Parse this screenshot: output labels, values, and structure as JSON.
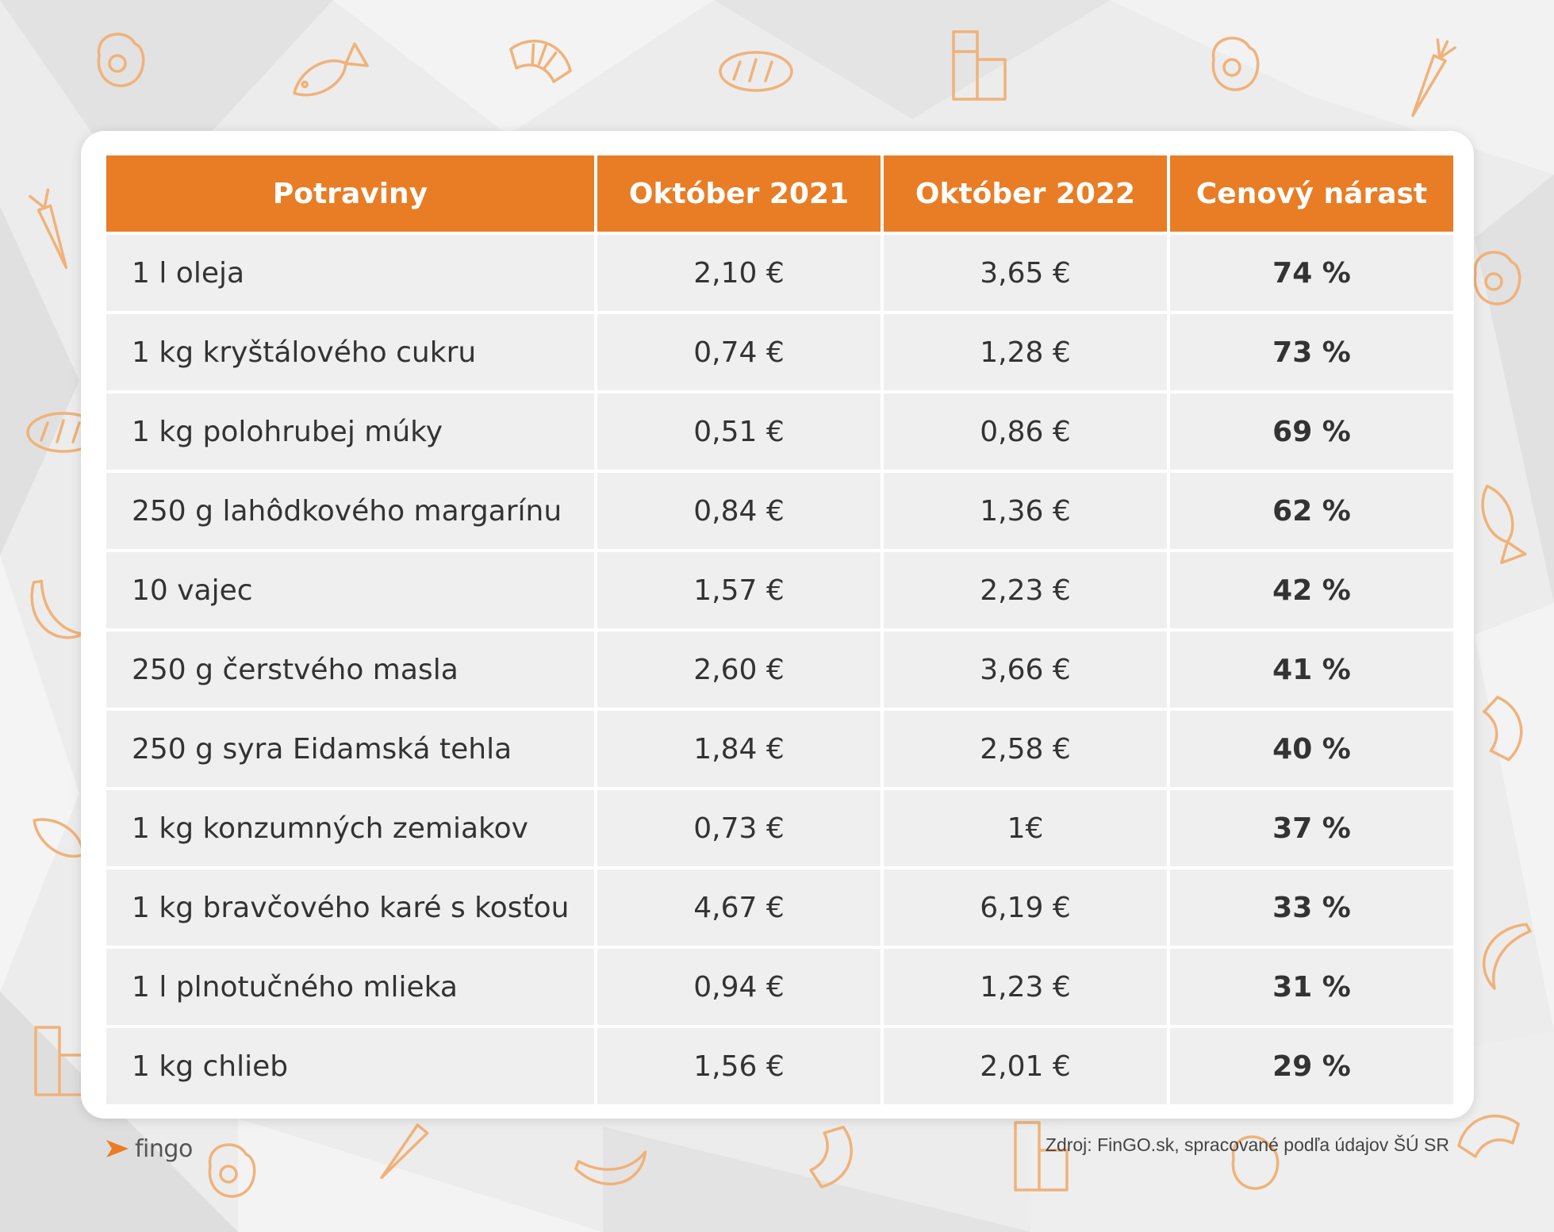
{
  "chart_data": {
    "type": "table",
    "columns": [
      "Potraviny",
      "Október 2021",
      "Október 2022",
      "Cenový nárast"
    ],
    "rows": [
      [
        "1 l oleja",
        "2,10 €",
        "3,65 €",
        "74 %"
      ],
      [
        "1 kg kryštálového cukru",
        "0,74 €",
        "1,28 €",
        "73 %"
      ],
      [
        "1 kg polohrubej múky",
        "0,51 €",
        "0,86 €",
        "69 %"
      ],
      [
        "250 g lahôdkového margarínu",
        "0,84 €",
        "1,36 €",
        "62 %"
      ],
      [
        "10 vajec",
        "1,57 €",
        "2,23 €",
        "42 %"
      ],
      [
        "250 g čerstvého masla",
        "2,60 €",
        "3,66 €",
        "41 %"
      ],
      [
        "250 g syra Eidamská tehla",
        "1,84 €",
        "2,58 €",
        "40 %"
      ],
      [
        "1 kg konzumných zemiakov",
        "0,73 €",
        "1€",
        "37 %"
      ],
      [
        "1 kg bravčového karé s kosťou",
        "4,67 €",
        "6,19 €",
        "33 %"
      ],
      [
        "1 l plnotučného mlieka",
        "0,94 €",
        "1,23 €",
        "31 %"
      ],
      [
        "1 kg chlieb",
        "1,56 €",
        "2,01 €",
        "29 %"
      ]
    ]
  },
  "footer": {
    "logo_text": "fingo",
    "source": "Zdroj: FinGO.sk, spracované podľa údajov ŠÚ SR"
  },
  "colors": {
    "accent": "#e87d25",
    "cell_background": "#efefef",
    "page_background": "#ececec",
    "icon_outline": "#f0b27a"
  },
  "decorations": {
    "background_icons": [
      "egg-icon",
      "fish-icon",
      "croissant-icon",
      "bread-icon",
      "milk-carton-icon",
      "carrot-icon",
      "banana-icon"
    ]
  }
}
